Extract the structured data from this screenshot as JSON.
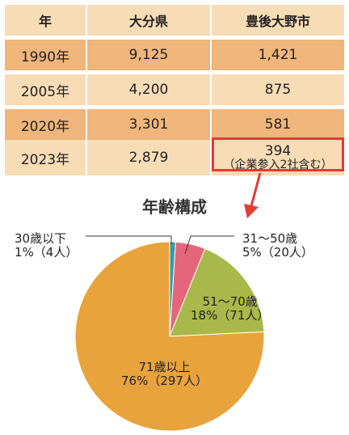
{
  "table": {
    "headers": [
      "年",
      "大分県",
      "豊後大野市"
    ],
    "rows": [
      {
        "year": "1990年",
        "oita": "9,125",
        "bungo_ono": "1,421",
        "note": ""
      },
      {
        "year": "2005年",
        "oita": "4,200",
        "bungo_ono": "875",
        "note": ""
      },
      {
        "year": "2020年",
        "oita": "3,301",
        "bungo_ono": "581",
        "note": ""
      },
      {
        "year": "2023年",
        "oita": "2,879",
        "bungo_ono": "394",
        "note": "（企業参入2社含む）"
      }
    ]
  },
  "colors": {
    "row_light": "#f8dcb6",
    "row_dark": "#f0b57a",
    "highlight": "#e53935",
    "slice_teal": "#3a9aa0",
    "slice_pink": "#e5667a",
    "slice_olive": "#a8b84a",
    "slice_orange": "#e8a33d"
  },
  "chart_data": {
    "type": "pie",
    "title": "年齢構成",
    "slices": [
      {
        "name": "30歳以下",
        "label_line2": "1%（4人）",
        "value": 4,
        "percent": 1,
        "color": "#3a9aa0"
      },
      {
        "name": "31〜50歳",
        "label_line2": "5%（20人）",
        "value": 20,
        "percent": 5,
        "color": "#e5667a"
      },
      {
        "name": "51〜70歳",
        "label_line2": "18%（71人）",
        "value": 71,
        "percent": 18,
        "color": "#a8b84a"
      },
      {
        "name": "71歳以上",
        "label_line2": "76%（297人）",
        "value": 297,
        "percent": 76,
        "color": "#e8a33d"
      }
    ]
  }
}
